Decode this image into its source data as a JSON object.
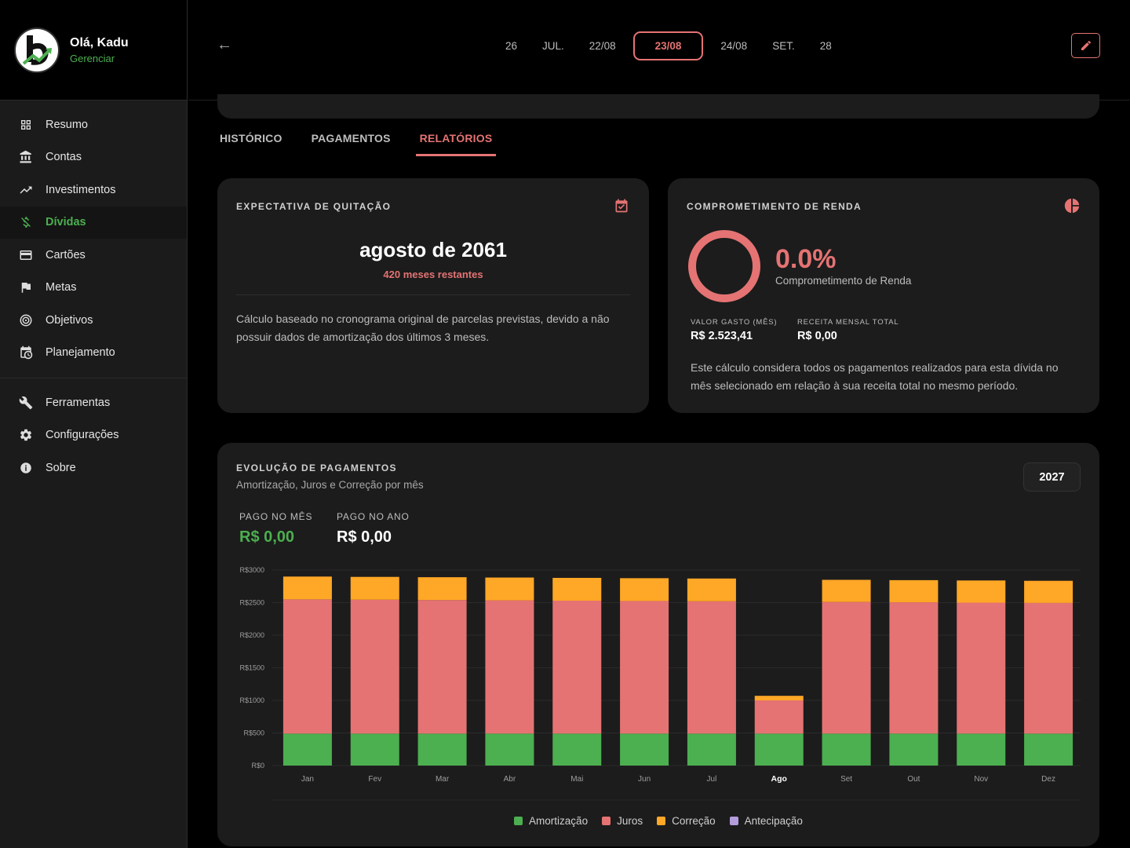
{
  "user": {
    "greeting": "Olá, Kadu",
    "manage": "Gerenciar"
  },
  "nav": [
    {
      "label": "Resumo",
      "icon": "grid-icon",
      "name": "resumo"
    },
    {
      "label": "Contas",
      "icon": "bank-icon",
      "name": "contas"
    },
    {
      "label": "Investimentos",
      "icon": "trending-up-icon",
      "name": "investimentos"
    },
    {
      "label": "Dívidas",
      "icon": "money-off-icon",
      "name": "dividas",
      "active": true
    },
    {
      "label": "Cartões",
      "icon": "credit-card-icon",
      "name": "cartoes"
    },
    {
      "label": "Metas",
      "icon": "flag-icon",
      "name": "metas"
    },
    {
      "label": "Objetivos",
      "icon": "target-icon",
      "name": "objetivos"
    },
    {
      "label": "Planejamento",
      "icon": "calendar-clock-icon",
      "name": "planejamento"
    }
  ],
  "nav2": [
    {
      "label": "Ferramentas",
      "icon": "wrench-icon",
      "name": "ferramentas"
    },
    {
      "label": "Configurações",
      "icon": "gear-icon",
      "name": "configuracoes"
    },
    {
      "label": "Sobre",
      "icon": "info-icon",
      "name": "sobre"
    }
  ],
  "dates": [
    "26",
    "JUL.",
    "22/08",
    "23/08",
    "24/08",
    "SET.",
    "28"
  ],
  "selected_date": "23/08",
  "tabs": {
    "historico": "HISTÓRICO",
    "pagamentos": "PAGAMENTOS",
    "relatorios": "RELATÓRIOS"
  },
  "payoff": {
    "title": "EXPECTATIVA DE QUITAÇÃO",
    "date": "agosto de 2061",
    "remaining": "420 meses restantes",
    "note": "Cálculo baseado no cronograma original de parcelas previstas, devido a não possuir dados de amortização dos últimos 3 meses."
  },
  "income": {
    "title": "COMPROMETIMENTO DE RENDA",
    "percent": "0.0%",
    "percent_value": 0.0,
    "percent_label": "Comprometimento de Renda",
    "spent_label": "VALOR GASTO (MÊS)",
    "spent_value": "R$ 2.523,41",
    "income_label": "RECEITA MENSAL TOTAL",
    "income_value": "R$ 0,00",
    "note": "Este cálculo considera todos os pagamentos realizados para esta dívida no mês selecionado em relação à sua receita total no mesmo período."
  },
  "evolution": {
    "title": "EVOLUÇÃO DE PAGAMENTOS",
    "subtitle": "Amortização, Juros e Correção por mês",
    "year": "2027",
    "month_label": "PAGO NO MÊS",
    "month_value": "R$ 0,00",
    "year_label": "PAGO NO ANO",
    "year_value": "R$ 0,00"
  },
  "colors": {
    "accent": "#e57373",
    "green": "#4caf50",
    "orange": "#ffa726",
    "purple": "#b39ddb"
  },
  "chart_data": {
    "type": "bar",
    "stacked": true,
    "categories": [
      "Jan",
      "Fev",
      "Mar",
      "Abr",
      "Mai",
      "Jun",
      "Jul",
      "Ago",
      "Set",
      "Out",
      "Nov",
      "Dez"
    ],
    "highlight": "Ago",
    "yticks": [
      "R$0",
      "R$500",
      "R$1000",
      "R$1500",
      "R$2000",
      "R$2500",
      "R$3000"
    ],
    "ylim": [
      0,
      3000
    ],
    "series": [
      {
        "name": "Amortização",
        "color": "#4caf50",
        "values": [
          490,
          490,
          490,
          490,
          490,
          490,
          490,
          490,
          490,
          490,
          490,
          490
        ]
      },
      {
        "name": "Juros",
        "color": "#e57373",
        "values": [
          2060,
          2055,
          2050,
          2045,
          2040,
          2035,
          2030,
          510,
          2020,
          2015,
          2010,
          2005
        ]
      },
      {
        "name": "Correção",
        "color": "#ffa726",
        "values": [
          350,
          350,
          350,
          350,
          350,
          350,
          350,
          70,
          340,
          340,
          340,
          340
        ]
      },
      {
        "name": "Antecipação",
        "color": "#b39ddb",
        "values": [
          0,
          0,
          0,
          0,
          0,
          0,
          0,
          0,
          0,
          0,
          0,
          0
        ]
      }
    ]
  }
}
